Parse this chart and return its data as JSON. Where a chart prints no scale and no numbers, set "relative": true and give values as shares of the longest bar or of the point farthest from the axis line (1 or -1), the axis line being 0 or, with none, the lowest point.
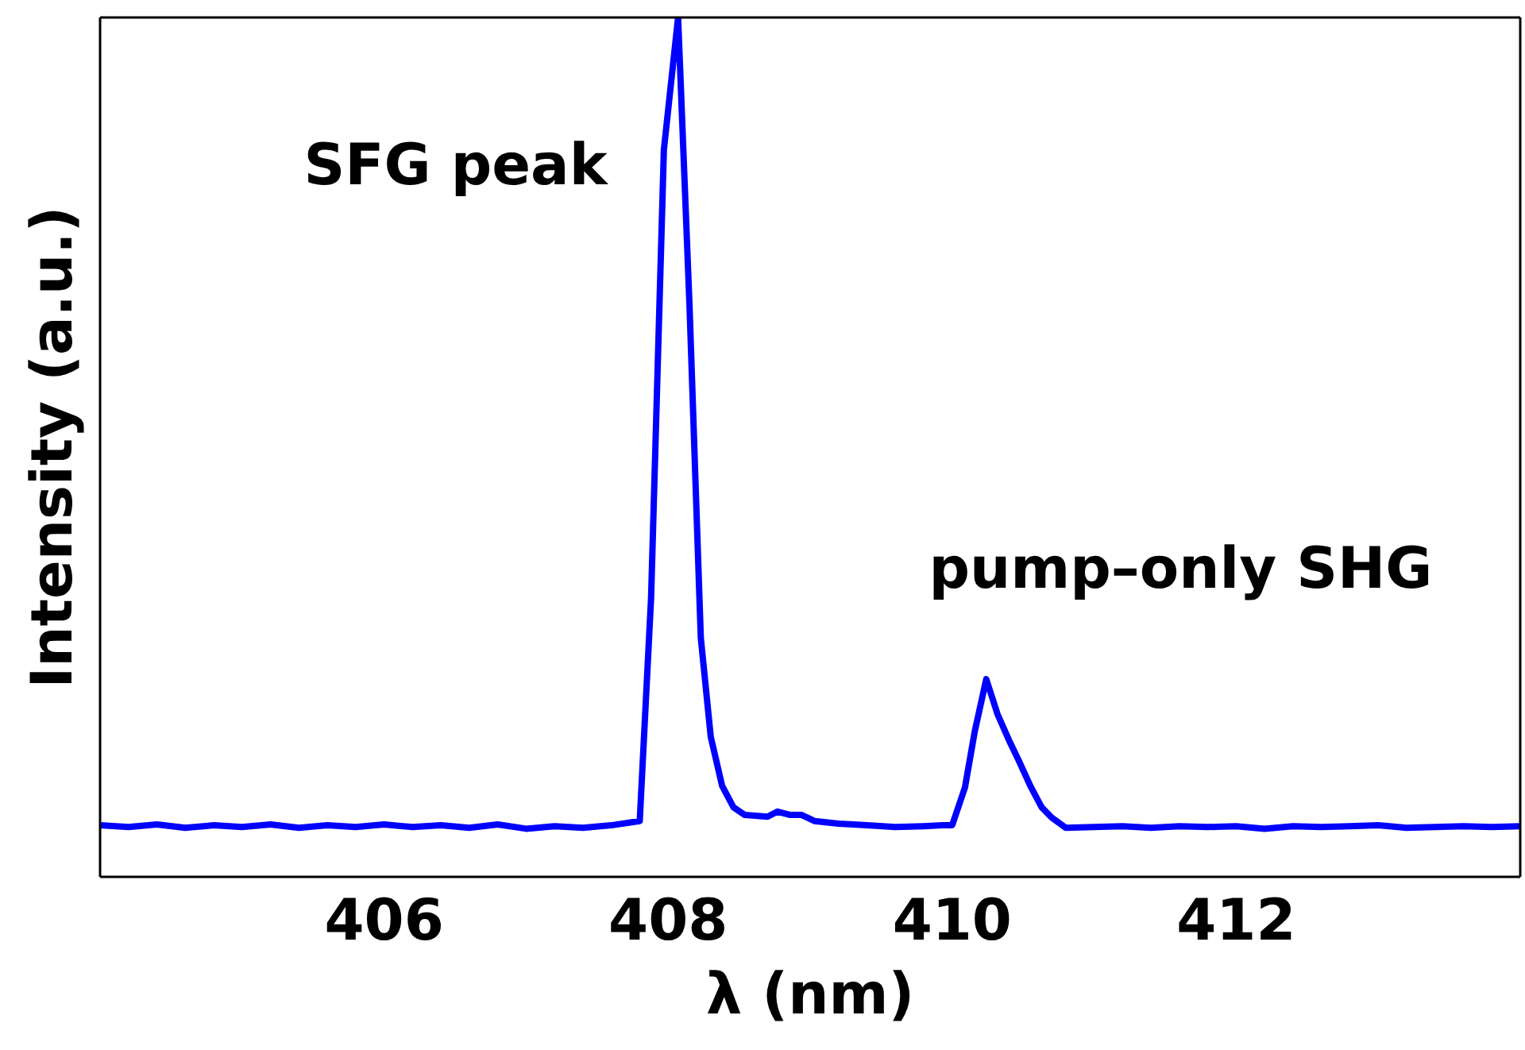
{
  "chart_data": {
    "type": "line",
    "relative": true,
    "xlabel": "λ (nm)",
    "ylabel": "Intensity (a.u.)",
    "xlim": [
      404.0,
      414.0
    ],
    "xticks": [
      406,
      408,
      410,
      412
    ],
    "grid": false,
    "legend": false,
    "marker": "none",
    "line_style": "solid",
    "x": [
      404.0,
      404.2,
      404.4,
      404.6,
      404.8,
      405.0,
      405.2,
      405.4,
      405.6,
      405.8,
      406.0,
      406.2,
      406.4,
      406.6,
      406.8,
      407.0,
      407.2,
      407.4,
      407.6,
      407.8,
      407.88,
      407.97,
      408.07,
      408.15,
      408.23,
      408.3,
      408.38,
      408.46,
      408.54,
      408.7,
      408.77,
      408.86,
      408.94,
      409.03,
      409.2,
      409.4,
      409.6,
      409.8,
      409.93,
      410.0,
      410.09,
      410.16,
      410.24,
      410.32,
      410.4,
      410.47,
      410.55,
      410.63,
      410.7,
      410.8,
      411.0,
      411.2,
      411.4,
      411.6,
      411.8,
      412.0,
      412.2,
      412.4,
      412.6,
      412.8,
      413.0,
      413.2,
      413.4,
      413.6,
      413.8,
      414.0
    ],
    "series": [
      {
        "color": "#0000ff",
        "values": [
          0.06,
          0.058,
          0.061,
          0.057,
          0.06,
          0.058,
          0.061,
          0.057,
          0.06,
          0.058,
          0.061,
          0.058,
          0.06,
          0.057,
          0.061,
          0.056,
          0.059,
          0.057,
          0.06,
          0.065,
          0.325,
          0.846,
          1.0,
          0.667,
          0.278,
          0.163,
          0.106,
          0.081,
          0.072,
          0.07,
          0.076,
          0.072,
          0.072,
          0.065,
          0.062,
          0.06,
          0.058,
          0.059,
          0.06,
          0.06,
          0.104,
          0.17,
          0.23,
          0.189,
          0.159,
          0.135,
          0.106,
          0.081,
          0.069,
          0.057,
          0.058,
          0.059,
          0.057,
          0.059,
          0.058,
          0.059,
          0.056,
          0.059,
          0.058,
          0.059,
          0.06,
          0.057,
          0.058,
          0.059,
          0.058,
          0.059
        ]
      }
    ],
    "annotations": [
      "SFG peak",
      "pump–only SHG"
    ]
  }
}
